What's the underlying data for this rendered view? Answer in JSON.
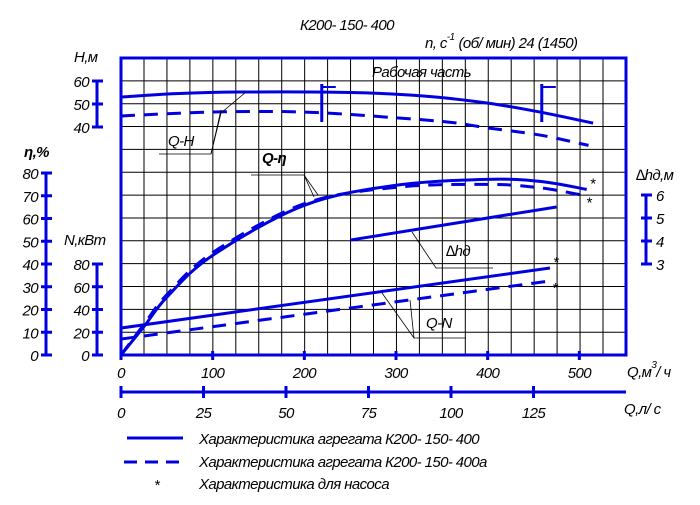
{
  "header": {
    "title": "К200- 150- 400",
    "speed": "n, с",
    "speed_exp": "-1",
    "speed_rest": "(об/ мин) 24 (1450)"
  },
  "working_zone_label": "Рабочая часть",
  "legend": [
    {
      "marker": "solid",
      "label": "Характеристика агрегата К200- 150- 400"
    },
    {
      "marker": "dashed",
      "label": "Характеристика агрегата К200- 150- 400а"
    },
    {
      "marker": "*",
      "label": "Характеристика для насоса"
    }
  ],
  "colors": {
    "curve": "#0000e0",
    "grid": "#000000"
  },
  "chart_data": {
    "type": "line",
    "grid": true,
    "x_axis": {
      "label": "Q,м",
      "label_exp": "3",
      "label_unit": "/ ч",
      "range": [
        0,
        550
      ],
      "ticks": [
        0,
        100,
        200,
        300,
        400,
        500
      ]
    },
    "x2_axis": {
      "label": "Q,л/ с",
      "ticks": [
        0,
        25,
        50,
        75,
        100,
        125
      ]
    },
    "y_axes": {
      "H": {
        "label": "Н,м",
        "range": [
          40,
          60
        ],
        "ticks": [
          40,
          50,
          60
        ]
      },
      "eta": {
        "label": "η,%",
        "range": [
          0,
          80
        ],
        "ticks": [
          0,
          10,
          20,
          30,
          40,
          50,
          60,
          70,
          80
        ]
      },
      "N": {
        "label": "N,кВт",
        "range": [
          0,
          80
        ],
        "ticks": [
          0,
          20,
          40,
          60,
          80
        ]
      },
      "dh": {
        "label": "∆hд,м",
        "range": [
          3,
          6
        ],
        "ticks": [
          3,
          4,
          5,
          6
        ]
      }
    },
    "working_zone": [
      219,
      459
    ],
    "curve_labels": {
      "QH": "Q-H",
      "Qeta": "Q-η",
      "dh": "∆hд",
      "QN": "Q-N"
    },
    "series": [
      {
        "axis": "H",
        "style": "solid",
        "x": [
          0,
          60,
          130,
          250,
          330,
          400,
          457,
          515
        ],
        "y": [
          53,
          54.5,
          55.2,
          55,
          53.5,
          50.4,
          46.5,
          41.7
        ]
      },
      {
        "axis": "H",
        "style": "dashed",
        "x": [
          0,
          100,
          200,
          300,
          360,
          400,
          457,
          510
        ],
        "y": [
          44.8,
          46.5,
          46.5,
          44,
          42,
          39.6,
          36.5,
          32
        ]
      },
      {
        "axis": "eta",
        "style": "solid",
        "x": [
          0,
          26,
          50,
          100,
          200,
          300,
          400,
          457,
          508
        ],
        "y": [
          0,
          13,
          25.4,
          43.8,
          65.8,
          74.6,
          77.2,
          76.3,
          72.8
        ],
        "end_star": true
      },
      {
        "axis": "eta",
        "style": "dashed",
        "x": [
          0,
          26,
          50,
          100,
          200,
          300,
          400,
          457,
          504
        ],
        "y": [
          0,
          14,
          26.5,
          45,
          66.5,
          73.7,
          75,
          73.5,
          70.2
        ],
        "end_star": true
      },
      {
        "axis": "dh",
        "style": "solid",
        "x": [
          250,
          475
        ],
        "y": [
          4.04,
          5.48
        ]
      },
      {
        "axis": "N",
        "style": "solid",
        "x": [
          0,
          468
        ],
        "y": [
          23.7,
          76.5
        ],
        "end_star": true
      },
      {
        "axis": "N",
        "style": "dashed",
        "x": [
          0,
          467
        ],
        "y": [
          14,
          65
        ],
        "end_star": true
      }
    ]
  }
}
